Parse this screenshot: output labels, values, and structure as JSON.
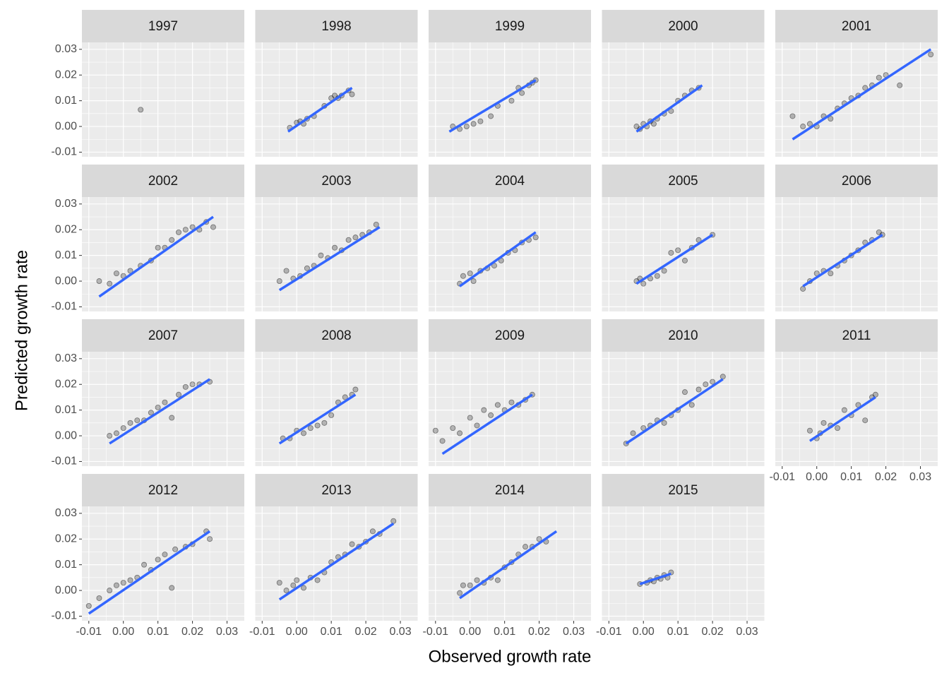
{
  "chart_data": {
    "type": "scatter",
    "x_label": "Observed growth rate",
    "y_label": "Predicted growth rate",
    "xlim": [
      -0.012,
      0.035
    ],
    "ylim": [
      -0.0118,
      0.0327
    ],
    "xticks": [
      -0.01,
      {
        "value": 0,
        "label": "0.00"
      },
      0.01,
      0.02,
      0.03
    ],
    "yticks": [
      -0.01,
      {
        "value": 0,
        "label": "0.00"
      },
      0.01,
      0.02,
      0.03
    ],
    "grid": true,
    "point_color": "#000000",
    "fit_color": "#3366ff",
    "facets": [
      {
        "title": "1997",
        "x": [
          0.005
        ],
        "y": [
          0.0065
        ]
      },
      {
        "title": "1998",
        "x": [
          -0.002,
          0.0,
          0.001,
          0.002,
          0.003,
          0.005,
          0.008,
          0.01,
          0.011,
          0.012,
          0.013,
          0.015,
          0.016
        ],
        "y": [
          -0.0005,
          0.0015,
          0.002,
          0.001,
          0.003,
          0.004,
          0.008,
          0.011,
          0.012,
          0.011,
          0.012,
          0.014,
          0.0125
        ],
        "fit": {
          "x": [
            -0.0025,
            0.016
          ],
          "y": [
            -0.002,
            0.015
          ]
        }
      },
      {
        "title": "1999",
        "x": [
          -0.005,
          -0.003,
          -0.001,
          0.001,
          0.003,
          0.006,
          0.008,
          0.012,
          0.014,
          0.015,
          0.017,
          0.018,
          0.019
        ],
        "y": [
          0.0,
          -0.001,
          0.0,
          0.001,
          0.002,
          0.004,
          0.008,
          0.01,
          0.015,
          0.013,
          0.016,
          0.017,
          0.018
        ],
        "fit": {
          "x": [
            -0.006,
            0.019
          ],
          "y": [
            -0.002,
            0.018
          ]
        }
      },
      {
        "title": "2000",
        "x": [
          -0.002,
          -0.001,
          0.0,
          0.001,
          0.002,
          0.003,
          0.004,
          0.006,
          0.008,
          0.01,
          0.012,
          0.014,
          0.016
        ],
        "y": [
          0.0,
          -0.001,
          0.001,
          0.0,
          0.002,
          0.001,
          0.003,
          0.005,
          0.006,
          0.01,
          0.012,
          0.014,
          0.015
        ],
        "fit": {
          "x": [
            -0.002,
            0.017
          ],
          "y": [
            -0.002,
            0.016
          ]
        }
      },
      {
        "title": "2001",
        "x": [
          -0.007,
          -0.004,
          -0.002,
          0,
          0.002,
          0.004,
          0.006,
          0.008,
          0.01,
          0.012,
          0.014,
          0.016,
          0.018,
          0.02,
          0.024,
          0.033
        ],
        "y": [
          0.004,
          0.0,
          0.001,
          0.0,
          0.004,
          0.003,
          0.007,
          0.009,
          0.011,
          0.012,
          0.015,
          0.016,
          0.019,
          0.02,
          0.016,
          0.028
        ],
        "fit": {
          "x": [
            -0.007,
            0.033
          ],
          "y": [
            -0.005,
            0.03
          ]
        }
      },
      {
        "title": "2002",
        "x": [
          -0.007,
          -0.004,
          -0.002,
          0,
          0.002,
          0.005,
          0.008,
          0.01,
          0.012,
          0.014,
          0.016,
          0.018,
          0.02,
          0.022,
          0.024,
          0.026
        ],
        "y": [
          0.0,
          -0.001,
          0.003,
          0.002,
          0.004,
          0.006,
          0.008,
          0.013,
          0.013,
          0.016,
          0.019,
          0.02,
          0.021,
          0.02,
          0.023,
          0.021
        ],
        "fit": {
          "x": [
            -0.007,
            0.026
          ],
          "y": [
            -0.006,
            0.025
          ]
        }
      },
      {
        "title": "2003",
        "x": [
          -0.005,
          -0.003,
          -0.001,
          0.001,
          0.003,
          0.005,
          0.007,
          0.009,
          0.011,
          0.013,
          0.015,
          0.017,
          0.019,
          0.021,
          0.023
        ],
        "y": [
          0.0,
          0.004,
          0.001,
          0.002,
          0.005,
          0.006,
          0.01,
          0.009,
          0.013,
          0.012,
          0.016,
          0.017,
          0.018,
          0.019,
          0.022
        ],
        "fit": {
          "x": [
            -0.005,
            0.024
          ],
          "y": [
            -0.0035,
            0.021
          ]
        }
      },
      {
        "title": "2004",
        "x": [
          -0.003,
          -0.002,
          0,
          0.001,
          0.003,
          0.005,
          0.007,
          0.009,
          0.011,
          0.013,
          0.015,
          0.017,
          0.019
        ],
        "y": [
          -0.001,
          0.002,
          0.003,
          0.0,
          0.004,
          0.005,
          0.006,
          0.008,
          0.011,
          0.012,
          0.015,
          0.016,
          0.017
        ],
        "fit": {
          "x": [
            -0.003,
            0.019
          ],
          "y": [
            -0.002,
            0.019
          ]
        }
      },
      {
        "title": "2005",
        "x": [
          -0.002,
          -0.001,
          0,
          0.002,
          0.004,
          0.006,
          0.008,
          0.01,
          0.012,
          0.014,
          0.016,
          0.02
        ],
        "y": [
          0.0,
          0.001,
          -0.001,
          0.001,
          0.002,
          0.004,
          0.011,
          0.012,
          0.008,
          0.013,
          0.016,
          0.018
        ],
        "fit": {
          "x": [
            -0.002,
            0.02
          ],
          "y": [
            -0.001,
            0.018
          ]
        }
      },
      {
        "title": "2006",
        "x": [
          -0.004,
          -0.002,
          0,
          0.002,
          0.004,
          0.006,
          0.008,
          0.01,
          0.012,
          0.014,
          0.016,
          0.018,
          0.019
        ],
        "y": [
          -0.003,
          0.0,
          0.003,
          0.004,
          0.003,
          0.006,
          0.008,
          0.01,
          0.012,
          0.015,
          0.016,
          0.019,
          0.018
        ],
        "fit": {
          "x": [
            -0.004,
            0.019
          ],
          "y": [
            -0.002,
            0.018
          ]
        }
      },
      {
        "title": "2007",
        "x": [
          -0.004,
          -0.002,
          0,
          0.002,
          0.004,
          0.006,
          0.008,
          0.01,
          0.012,
          0.014,
          0.016,
          0.018,
          0.02,
          0.022,
          0.025
        ],
        "y": [
          0.0,
          0.001,
          0.003,
          0.005,
          0.006,
          0.006,
          0.009,
          0.011,
          0.013,
          0.007,
          0.016,
          0.019,
          0.02,
          0.02,
          0.021
        ],
        "fit": {
          "x": [
            -0.004,
            0.025
          ],
          "y": [
            -0.003,
            0.022
          ]
        }
      },
      {
        "title": "2008",
        "x": [
          -0.004,
          -0.002,
          0,
          0.002,
          0.004,
          0.006,
          0.008,
          0.01,
          0.012,
          0.014,
          0.016,
          0.017
        ],
        "y": [
          -0.001,
          -0.001,
          0.002,
          0.001,
          0.003,
          0.004,
          0.005,
          0.008,
          0.013,
          0.015,
          0.016,
          0.018
        ],
        "fit": {
          "x": [
            -0.005,
            0.017
          ],
          "y": [
            -0.003,
            0.016
          ]
        }
      },
      {
        "title": "2009",
        "x": [
          -0.01,
          -0.008,
          -0.005,
          -0.003,
          0,
          0.002,
          0.004,
          0.006,
          0.008,
          0.01,
          0.012,
          0.014,
          0.016,
          0.018
        ],
        "y": [
          0.002,
          -0.002,
          0.003,
          0.001,
          0.007,
          0.004,
          0.01,
          0.008,
          0.012,
          0.01,
          0.013,
          0.012,
          0.014,
          0.016
        ],
        "fit": {
          "x": [
            -0.008,
            0.018
          ],
          "y": [
            -0.007,
            0.016
          ]
        }
      },
      {
        "title": "2010",
        "x": [
          -0.005,
          -0.003,
          0,
          0.002,
          0.004,
          0.006,
          0.008,
          0.01,
          0.012,
          0.014,
          0.016,
          0.018,
          0.02,
          0.023
        ],
        "y": [
          -0.003,
          0.001,
          0.003,
          0.004,
          0.006,
          0.005,
          0.008,
          0.01,
          0.017,
          0.012,
          0.018,
          0.02,
          0.021,
          0.023
        ],
        "fit": {
          "x": [
            -0.005,
            0.023
          ],
          "y": [
            -0.003,
            0.022
          ]
        }
      },
      {
        "title": "2011",
        "x": [
          -0.002,
          0,
          0.001,
          0.002,
          0.004,
          0.006,
          0.008,
          0.01,
          0.012,
          0.014,
          0.016,
          0.017
        ],
        "y": [
          0.002,
          -0.001,
          0.001,
          0.005,
          0.004,
          0.003,
          0.01,
          0.008,
          0.012,
          0.006,
          0.015,
          0.016
        ],
        "fit": {
          "x": [
            -0.002,
            0.017
          ],
          "y": [
            -0.002,
            0.015
          ]
        }
      },
      {
        "title": "2012",
        "x": [
          -0.01,
          -0.007,
          -0.004,
          -0.002,
          0,
          0.002,
          0.004,
          0.006,
          0.008,
          0.01,
          0.012,
          0.014,
          0.015,
          0.018,
          0.02,
          0.024,
          0.025
        ],
        "y": [
          -0.006,
          -0.003,
          0.0,
          0.002,
          0.003,
          0.004,
          0.005,
          0.01,
          0.008,
          0.012,
          0.014,
          0.001,
          0.016,
          0.017,
          0.018,
          0.023,
          0.02
        ],
        "fit": {
          "x": [
            -0.01,
            0.025
          ],
          "y": [
            -0.009,
            0.023
          ]
        }
      },
      {
        "title": "2013",
        "x": [
          -0.005,
          -0.003,
          -0.001,
          0,
          0.002,
          0.004,
          0.006,
          0.008,
          0.01,
          0.012,
          0.014,
          0.016,
          0.018,
          0.02,
          0.022,
          0.024,
          0.028
        ],
        "y": [
          0.003,
          0.0,
          0.002,
          0.004,
          0.001,
          0.005,
          0.004,
          0.007,
          0.011,
          0.013,
          0.014,
          0.018,
          0.017,
          0.019,
          0.023,
          0.022,
          0.027
        ],
        "fit": {
          "x": [
            -0.005,
            0.028
          ],
          "y": [
            -0.0035,
            0.026
          ]
        }
      },
      {
        "title": "2014",
        "x": [
          -0.003,
          -0.002,
          0,
          0.002,
          0.004,
          0.006,
          0.008,
          0.01,
          0.012,
          0.014,
          0.016,
          0.018,
          0.02,
          0.022
        ],
        "y": [
          -0.001,
          0.002,
          0.002,
          0.004,
          0.003,
          0.005,
          0.004,
          0.009,
          0.011,
          0.014,
          0.017,
          0.017,
          0.02,
          0.019
        ],
        "fit": {
          "x": [
            -0.003,
            0.025
          ],
          "y": [
            -0.003,
            0.023
          ]
        }
      },
      {
        "title": "2015",
        "x": [
          -0.001,
          0.001,
          0.002,
          0.003,
          0.004,
          0.005,
          0.006,
          0.007,
          0.008
        ],
        "y": [
          0.0025,
          0.003,
          0.004,
          0.0035,
          0.005,
          0.0045,
          0.006,
          0.005,
          0.007
        ],
        "fit": {
          "x": [
            -0.001,
            0.008
          ],
          "y": [
            0.0025,
            0.0065
          ]
        }
      }
    ]
  }
}
